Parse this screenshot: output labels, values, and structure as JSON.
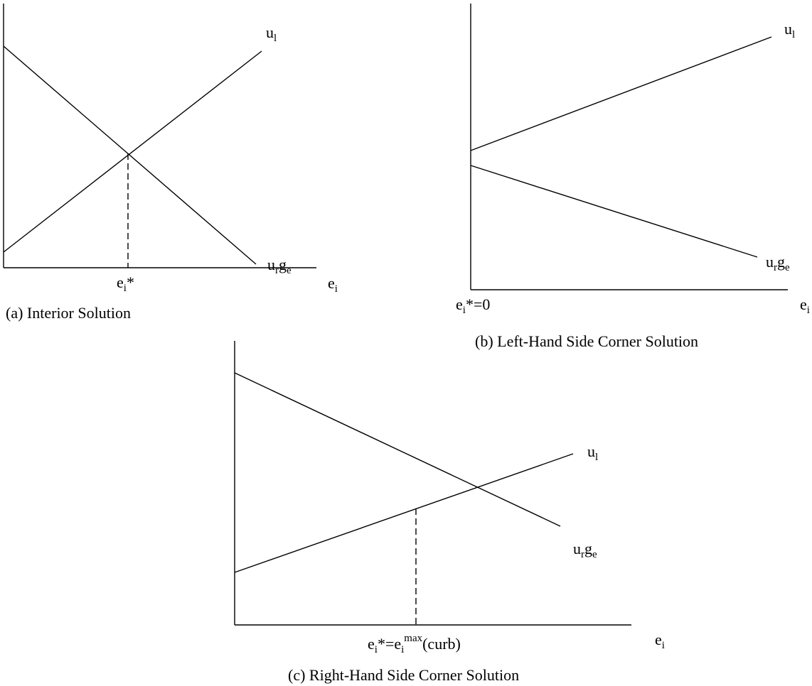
{
  "panels": {
    "a": {
      "caption": "(a) Interior Solution",
      "curve_top_label": {
        "base": "u",
        "sub": "l"
      },
      "curve_bottom_label": {
        "base1": "u",
        "sub1": "r",
        "base2": "g",
        "sub2": "e"
      },
      "solution_label": {
        "base": "e",
        "sub": "i",
        "suffix": "*"
      },
      "axis_label": {
        "base": "e",
        "sub": "i"
      }
    },
    "b": {
      "caption": "(b) Left-Hand Side Corner Solution",
      "curve_top_label": {
        "base": "u",
        "sub": "l"
      },
      "curve_bottom_label": {
        "base1": "u",
        "sub1": "r",
        "base2": "g",
        "sub2": "e"
      },
      "solution_label": {
        "base": "e",
        "sub": "i",
        "suffix": "*=0"
      },
      "axis_label": {
        "base": "e",
        "sub": "i"
      }
    },
    "c": {
      "caption": "(c) Right-Hand Side Corner Solution",
      "curve_top_label": {
        "base": "u",
        "sub": "l"
      },
      "curve_bottom_label": {
        "base1": "u",
        "sub1": "r",
        "base2": "g",
        "sub2": "e"
      },
      "solution_label": {
        "base1": "e",
        "sub1": "i",
        "mid": "*=e",
        "sub2": "i",
        "sup2": "max",
        "suffix": "(curb)"
      },
      "axis_label": {
        "base": "e",
        "sub": "i"
      }
    }
  }
}
